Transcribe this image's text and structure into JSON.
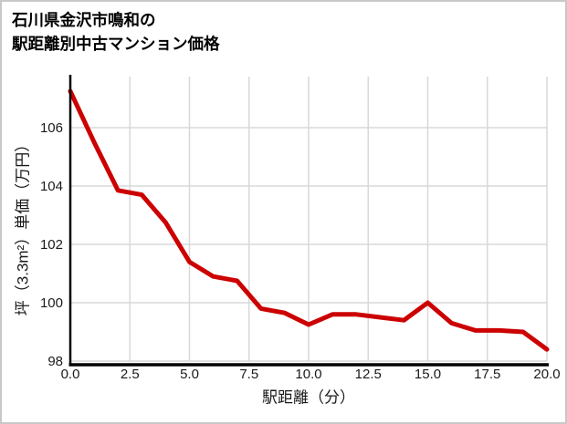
{
  "title": {
    "line1": "石川県金沢市鳴和の",
    "line2": "駅距離別中古マンション価格"
  },
  "colors": {
    "line": "#cc0101",
    "grid": "#d8d8d8",
    "axis": "#000000",
    "text": "#1a1a1a",
    "border": "#c8c8c8",
    "background": "#ffffff"
  },
  "chart_data": {
    "type": "line",
    "title": "石川県金沢市鳴和の駅距離別中古マンション価格",
    "xlabel": "駅距離（分）",
    "ylabel": "坪（3.3m²）単価（万円）",
    "x": [
      0,
      1,
      2,
      3,
      4,
      5,
      6,
      7,
      8,
      9,
      10,
      11,
      12,
      13,
      14,
      15,
      16,
      17,
      18,
      19,
      20
    ],
    "values": [
      107.25,
      105.5,
      103.85,
      103.7,
      102.75,
      101.4,
      100.9,
      100.75,
      99.8,
      99.65,
      99.25,
      99.6,
      99.6,
      99.5,
      99.4,
      100.0,
      99.3,
      99.05,
      99.05,
      99.0,
      98.4
    ],
    "x_ticks": [
      0,
      2.5,
      5,
      7.5,
      10,
      12.5,
      15,
      17.5,
      20
    ],
    "x_tick_labels": [
      "0.0",
      "2.5",
      "5.0",
      "7.5",
      "10.0",
      "12.5",
      "15.0",
      "17.5",
      "20.0"
    ],
    "y_ticks": [
      98,
      100,
      102,
      104,
      106
    ],
    "y_tick_labels": [
      "98",
      "100",
      "102",
      "104",
      "106"
    ],
    "xlim": [
      0,
      20
    ],
    "ylim": [
      98,
      107.75
    ],
    "grid": true,
    "legend": "none"
  }
}
